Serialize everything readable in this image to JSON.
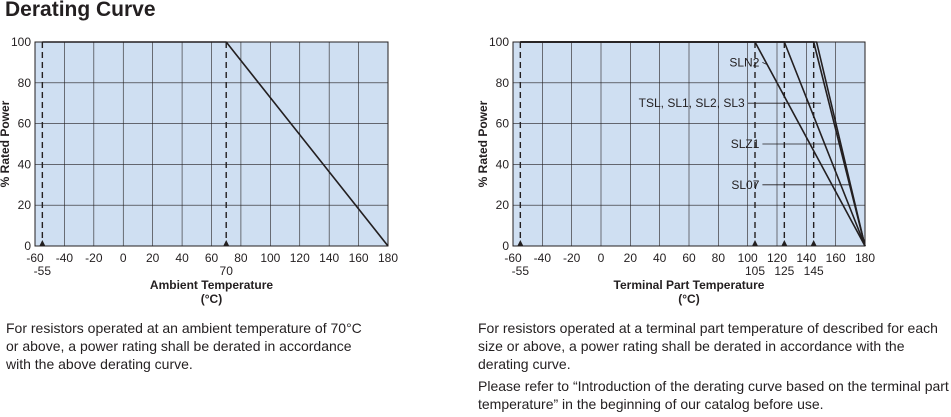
{
  "heading": "Derating Curve",
  "chart_data": [
    {
      "type": "line",
      "xlabel": "Ambient Temperature",
      "xunit": "(°C)",
      "ylabel": "% Rated Power",
      "xlim": [
        -60,
        180
      ],
      "ylim": [
        0,
        100
      ],
      "x_ticks": [
        "-60",
        "-40",
        "-20",
        "0",
        "20",
        "40",
        "60",
        "80",
        "100",
        "120",
        "140",
        "160",
        "180"
      ],
      "y_ticks": [
        "0",
        "20",
        "40",
        "60",
        "80",
        "100"
      ],
      "marker_ticks": [
        {
          "x": -55,
          "label": "-55"
        },
        {
          "x": 70,
          "label": "70"
        }
      ],
      "background_color": "#cfdff2",
      "grid": true,
      "series": [
        {
          "x": [
            -55,
            70,
            180
          ],
          "y": [
            100,
            100,
            0
          ]
        }
      ],
      "annotations": []
    },
    {
      "type": "line",
      "xlabel": "Terminal Part Temperature",
      "xunit": "(°C)",
      "ylabel": "% Rated Power",
      "xlim": [
        -60,
        180
      ],
      "ylim": [
        0,
        100
      ],
      "x_ticks": [
        "-60",
        "-40",
        "-20",
        "0",
        "20",
        "40",
        "60",
        "80",
        "100",
        "120",
        "140",
        "160",
        "180"
      ],
      "y_ticks": [
        "0",
        "20",
        "40",
        "60",
        "80",
        "100"
      ],
      "marker_ticks": [
        {
          "x": -55,
          "label": "-55"
        },
        {
          "x": 105,
          "label": "105"
        },
        {
          "x": 125,
          "label": "125"
        },
        {
          "x": 145,
          "label": "145"
        }
      ],
      "background_color": "#cfdff2",
      "grid": true,
      "series": [
        {
          "name": "SLN2",
          "x": [
            -55,
            105,
            180
          ],
          "y": [
            100,
            100,
            0
          ]
        },
        {
          "name": "TSL, SL1, SL2, SL3",
          "x": [
            -55,
            125,
            180
          ],
          "y": [
            100,
            100,
            0
          ]
        },
        {
          "name": "SLZ1",
          "x": [
            -55,
            145,
            180
          ],
          "y": [
            100,
            100,
            0
          ]
        },
        {
          "name": "SL07",
          "x": [
            -55,
            147,
            180
          ],
          "y": [
            100,
            100,
            0
          ]
        }
      ],
      "annotations": [
        {
          "text": "SLN2",
          "label_x": 108,
          "label_y": 90,
          "target_x": 113,
          "target_y": 89
        },
        {
          "text": "TSL, SL1, SL2, SL3",
          "label_x": 98,
          "label_y": 70,
          "target_x": 150,
          "target_y": 70
        },
        {
          "text": "SLZ1",
          "label_x": 108,
          "label_y": 50,
          "target_x": 162,
          "target_y": 50
        },
        {
          "text": "SL07",
          "label_x": 108,
          "label_y": 30,
          "target_x": 170,
          "target_y": 30
        }
      ]
    }
  ],
  "descriptions": {
    "left": "For resistors operated at an ambient temperature of 70°C or above, a power rating shall be derated in accordance with the above derating curve.",
    "right_1": "For resistors operated at a terminal part temperature of described for each size or above, a power rating shall be derated in accordance with the derating curve.",
    "right_2": "Please refer to “Introduction of the derating curve based on the terminal part temperature” in the beginning of our catalog before use."
  },
  "colors": {
    "plot_background": "#cfdff2",
    "grid": "#231f20",
    "line": "#231f20"
  }
}
